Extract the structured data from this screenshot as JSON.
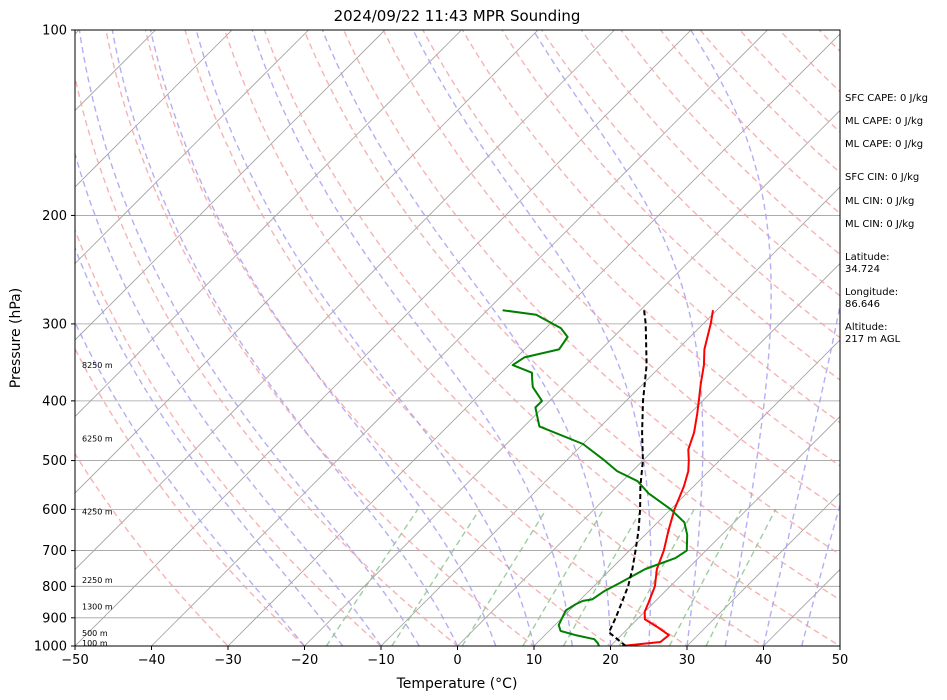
{
  "chart_data": {
    "type": "line",
    "title": "2024/09/22 11:43 MPR Sounding",
    "xlabel": "Temperature (°C)",
    "ylabel": "Pressure (hPa)",
    "xlim": [
      -50,
      50
    ],
    "ylim": [
      1000,
      100
    ],
    "y_scale": "log",
    "x_ticks": [
      -50,
      -40,
      -30,
      -20,
      -10,
      0,
      10,
      20,
      30,
      40,
      50
    ],
    "y_ticks": [
      1000,
      900,
      800,
      700,
      600,
      500,
      400,
      300,
      200,
      100
    ],
    "grid": true,
    "series": [
      {
        "color": "#ff0000",
        "points": [
          [
            1000,
            21.5
          ],
          [
            985,
            26.0
          ],
          [
            960,
            26.2
          ],
          [
            930,
            23.5
          ],
          [
            905,
            21.0
          ],
          [
            880,
            20.0
          ],
          [
            850,
            19.3
          ],
          [
            800,
            18.0
          ],
          [
            750,
            16.0
          ],
          [
            700,
            14.5
          ],
          [
            650,
            12.5
          ],
          [
            600,
            10.5
          ],
          [
            550,
            8.7
          ],
          [
            520,
            7.3
          ],
          [
            500,
            6.0
          ],
          [
            480,
            4.5
          ],
          [
            450,
            3.0
          ],
          [
            420,
            1.0
          ],
          [
            400,
            -0.5
          ],
          [
            375,
            -2.5
          ],
          [
            350,
            -4.5
          ],
          [
            330,
            -6.5
          ],
          [
            300,
            -9.0
          ],
          [
            285,
            -10.5
          ]
        ]
      },
      {
        "color": "#008000",
        "points": [
          [
            1000,
            18.5
          ],
          [
            990,
            18.0
          ],
          [
            975,
            17.0
          ],
          [
            960,
            14.0
          ],
          [
            945,
            11.5
          ],
          [
            925,
            10.5
          ],
          [
            900,
            10.0
          ],
          [
            875,
            9.5
          ],
          [
            855,
            10.0
          ],
          [
            845,
            10.5
          ],
          [
            840,
            11.5
          ],
          [
            815,
            12.0
          ],
          [
            790,
            13.0
          ],
          [
            750,
            14.5
          ],
          [
            720,
            17.0
          ],
          [
            700,
            17.5
          ],
          [
            660,
            15.5
          ],
          [
            630,
            13.5
          ],
          [
            600,
            10.0
          ],
          [
            565,
            5.0
          ],
          [
            540,
            2.0
          ],
          [
            520,
            -2.0
          ],
          [
            500,
            -5.0
          ],
          [
            470,
            -10.0
          ],
          [
            440,
            -18.0
          ],
          [
            410,
            -21.0
          ],
          [
            400,
            -21.0
          ],
          [
            380,
            -24.0
          ],
          [
            370,
            -25.0
          ],
          [
            360,
            -26.0
          ],
          [
            350,
            -29.5
          ],
          [
            340,
            -29.0
          ],
          [
            330,
            -25.5
          ],
          [
            315,
            -26.0
          ],
          [
            305,
            -28.0
          ],
          [
            290,
            -33.0
          ],
          [
            285,
            -38.0
          ]
        ]
      },
      {
        "color": "#000000",
        "dashed": true,
        "points": [
          [
            1000,
            22.0
          ],
          [
            950,
            18.0
          ],
          [
            900,
            17.0
          ],
          [
            850,
            15.8
          ],
          [
            800,
            14.5
          ],
          [
            750,
            12.8
          ],
          [
            700,
            10.8
          ],
          [
            650,
            8.6
          ],
          [
            600,
            6.0
          ],
          [
            550,
            3.0
          ],
          [
            500,
            0.0
          ],
          [
            450,
            -3.8
          ],
          [
            400,
            -7.8
          ],
          [
            350,
            -12.0
          ],
          [
            300,
            -17.5
          ],
          [
            285,
            -19.5
          ]
        ]
      }
    ],
    "height_labels": [
      {
        "label": "100 m",
        "p": 989
      },
      {
        "label": "500 m",
        "p": 952
      },
      {
        "label": "1300 m",
        "p": 863
      },
      {
        "label": "2250 m",
        "p": 782
      },
      {
        "label": "4250 m",
        "p": 605
      },
      {
        "label": "6250 m",
        "p": 460
      },
      {
        "label": "8250 m",
        "p": 350
      }
    ]
  },
  "side_info": {
    "sfc_cape": "SFC CAPE: 0 J/kg",
    "ml_cape_1": "ML CAPE: 0 J/kg",
    "ml_cape_2": "ML CAPE: 0 J/kg",
    "sfc_cin": "SFC CIN: 0 J/kg",
    "ml_cin_1": "ML CIN: 0 J/kg",
    "ml_cin_2": "ML CIN: 0 J/kg",
    "latitude": "Latitude:\n34.724",
    "longitude": "Longitude:\n86.646",
    "altitude": "Altitude:\n217 m AGL"
  },
  "colors": {
    "isotherm": "#a0a0a0",
    "dry_adiabat": "#f4a0a0",
    "moist_adiabat": "#a8a0f0",
    "mixing_ratio": "#88c088",
    "temperature": "#ff0000",
    "dewpoint": "#008000",
    "parcel": "#000000"
  }
}
